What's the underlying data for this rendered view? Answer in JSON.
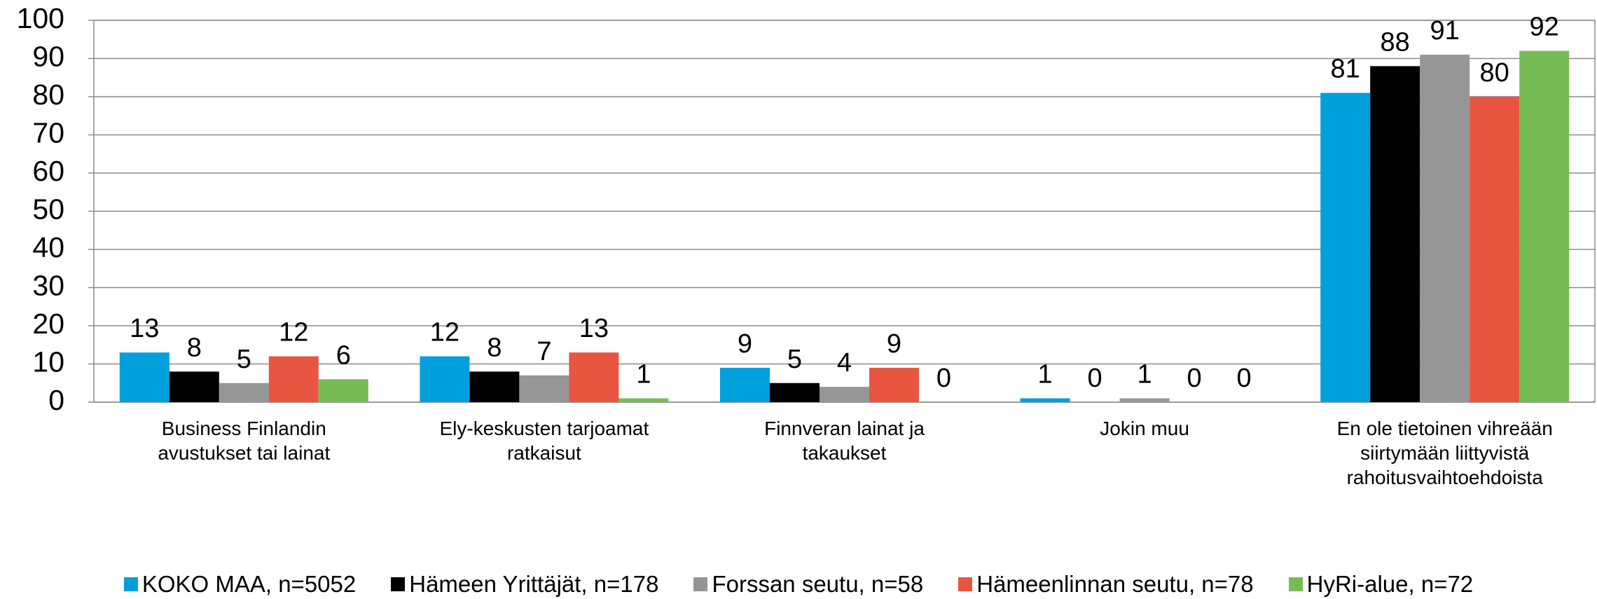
{
  "chart_data": {
    "type": "bar",
    "categories": [
      "Business Finlandin avustukset tai lainat",
      "Ely-keskusten tarjoamat ratkaisut",
      "Finnveran lainat ja takaukset",
      "Jokin muu",
      "En ole tietoinen vihreään siirtymään liittyvistä rahoitusvaihtoehdoista"
    ],
    "series": [
      {
        "name": "KOKO MAA, n=5052",
        "color": "#00a0dc",
        "values": [
          13,
          12,
          9,
          1,
          81
        ]
      },
      {
        "name": "Hämeen Yrittäjät, n=178",
        "color": "#000000",
        "values": [
          8,
          8,
          5,
          0,
          88
        ]
      },
      {
        "name": "Forssan seutu, n=58",
        "color": "#969696",
        "values": [
          5,
          7,
          4,
          1,
          91
        ]
      },
      {
        "name": "Hämeenlinnan seutu, n=78",
        "color": "#e85540",
        "values": [
          12,
          13,
          9,
          0,
          80
        ]
      },
      {
        "name": "HyRi-alue, n=72",
        "color": "#77bb55",
        "values": [
          6,
          1,
          0,
          0,
          92
        ]
      }
    ],
    "ylim": [
      0,
      100
    ],
    "yticks": [
      0,
      10,
      20,
      30,
      40,
      50,
      60,
      70,
      80,
      90,
      100
    ],
    "grid": true,
    "legend": "bottom"
  }
}
